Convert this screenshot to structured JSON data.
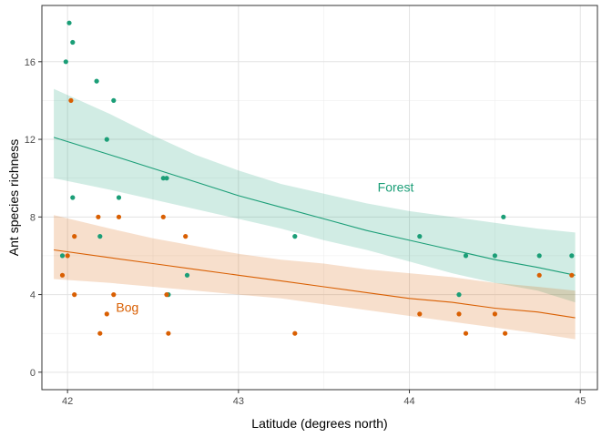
{
  "chart_data": {
    "type": "scatter",
    "title": "",
    "xlabel": "Latitude (degrees north)",
    "ylabel": "Ant species richness",
    "xlim": [
      41.85,
      45.1
    ],
    "ylim": [
      -0.9,
      18.9
    ],
    "x_ticks": [
      42,
      43,
      44,
      45
    ],
    "y_ticks": [
      0,
      4,
      8,
      12,
      16
    ],
    "x_tick_labels": [
      "42",
      "43",
      "44",
      "45"
    ],
    "y_tick_labels": [
      "0",
      "4",
      "8",
      "12",
      "16"
    ],
    "grid": true,
    "legend": "none",
    "series": [
      {
        "name": "Forest",
        "color": "#1B9E77",
        "label_pos": [
          43.92,
          9.3
        ],
        "points": [
          [
            41.97,
            6
          ],
          [
            41.99,
            16
          ],
          [
            42.01,
            18
          ],
          [
            42.03,
            17
          ],
          [
            42.03,
            9
          ],
          [
            42.17,
            15
          ],
          [
            42.19,
            7
          ],
          [
            42.23,
            12
          ],
          [
            42.27,
            14
          ],
          [
            42.3,
            9
          ],
          [
            42.56,
            10
          ],
          [
            42.58,
            10
          ],
          [
            42.59,
            4
          ],
          [
            42.7,
            5
          ],
          [
            43.33,
            7
          ],
          [
            44.06,
            7
          ],
          [
            44.29,
            4
          ],
          [
            44.33,
            6
          ],
          [
            44.5,
            6
          ],
          [
            44.55,
            8
          ],
          [
            44.76,
            6
          ],
          [
            44.95,
            6
          ]
        ],
        "fit": [
          [
            41.92,
            12.1
          ],
          [
            42.25,
            11.2
          ],
          [
            42.5,
            10.5
          ],
          [
            42.75,
            9.8
          ],
          [
            43.0,
            9.1
          ],
          [
            43.25,
            8.5
          ],
          [
            43.5,
            7.9
          ],
          [
            43.75,
            7.3
          ],
          [
            44.0,
            6.8
          ],
          [
            44.25,
            6.3
          ],
          [
            44.5,
            5.8
          ],
          [
            44.75,
            5.4
          ],
          [
            44.97,
            5.0
          ]
        ],
        "ci_upper": [
          [
            41.92,
            14.6
          ],
          [
            42.25,
            13.3
          ],
          [
            42.5,
            12.2
          ],
          [
            42.75,
            11.2
          ],
          [
            43.0,
            10.4
          ],
          [
            43.25,
            9.7
          ],
          [
            43.5,
            9.2
          ],
          [
            43.75,
            8.7
          ],
          [
            44.0,
            8.3
          ],
          [
            44.25,
            8.0
          ],
          [
            44.5,
            7.7
          ],
          [
            44.75,
            7.4
          ],
          [
            44.97,
            7.2
          ]
        ],
        "ci_lower": [
          [
            41.92,
            10.0
          ],
          [
            42.25,
            9.4
          ],
          [
            42.5,
            8.9
          ],
          [
            42.75,
            8.4
          ],
          [
            43.0,
            7.9
          ],
          [
            43.25,
            7.4
          ],
          [
            43.5,
            6.8
          ],
          [
            43.75,
            6.3
          ],
          [
            44.0,
            5.7
          ],
          [
            44.25,
            5.1
          ],
          [
            44.5,
            4.6
          ],
          [
            44.75,
            4.2
          ],
          [
            44.97,
            3.6
          ]
        ]
      },
      {
        "name": "Bog",
        "color": "#D95F02",
        "label_pos": [
          42.35,
          3.1
        ],
        "points": [
          [
            41.97,
            5
          ],
          [
            42.0,
            6
          ],
          [
            42.02,
            14
          ],
          [
            42.04,
            4
          ],
          [
            42.04,
            7
          ],
          [
            42.18,
            8
          ],
          [
            42.19,
            2
          ],
          [
            42.23,
            3
          ],
          [
            42.27,
            4
          ],
          [
            42.3,
            8
          ],
          [
            42.56,
            8
          ],
          [
            42.58,
            4
          ],
          [
            42.59,
            2
          ],
          [
            42.69,
            7
          ],
          [
            43.33,
            2
          ],
          [
            44.06,
            3
          ],
          [
            44.29,
            3
          ],
          [
            44.33,
            2
          ],
          [
            44.5,
            3
          ],
          [
            44.56,
            2
          ],
          [
            44.76,
            5
          ],
          [
            44.95,
            5
          ]
        ],
        "fit": [
          [
            41.92,
            6.3
          ],
          [
            42.25,
            5.9
          ],
          [
            42.5,
            5.6
          ],
          [
            42.75,
            5.3
          ],
          [
            43.0,
            5.0
          ],
          [
            43.25,
            4.7
          ],
          [
            43.5,
            4.4
          ],
          [
            43.75,
            4.1
          ],
          [
            44.0,
            3.8
          ],
          [
            44.25,
            3.6
          ],
          [
            44.5,
            3.3
          ],
          [
            44.75,
            3.1
          ],
          [
            44.97,
            2.8
          ]
        ],
        "ci_upper": [
          [
            41.92,
            8.1
          ],
          [
            42.25,
            7.4
          ],
          [
            42.5,
            6.9
          ],
          [
            42.75,
            6.5
          ],
          [
            43.0,
            6.1
          ],
          [
            43.25,
            5.8
          ],
          [
            43.5,
            5.6
          ],
          [
            43.75,
            5.3
          ],
          [
            44.0,
            5.1
          ],
          [
            44.25,
            4.9
          ],
          [
            44.5,
            4.6
          ],
          [
            44.75,
            4.4
          ],
          [
            44.97,
            4.2
          ]
        ],
        "ci_lower": [
          [
            41.92,
            4.8
          ],
          [
            42.25,
            4.6
          ],
          [
            42.5,
            4.4
          ],
          [
            42.75,
            4.2
          ],
          [
            43.0,
            4.0
          ],
          [
            43.25,
            3.8
          ],
          [
            43.5,
            3.5
          ],
          [
            43.75,
            3.2
          ],
          [
            44.0,
            2.9
          ],
          [
            44.25,
            2.6
          ],
          [
            44.5,
            2.3
          ],
          [
            44.75,
            2.0
          ],
          [
            44.97,
            1.7
          ]
        ]
      }
    ]
  }
}
